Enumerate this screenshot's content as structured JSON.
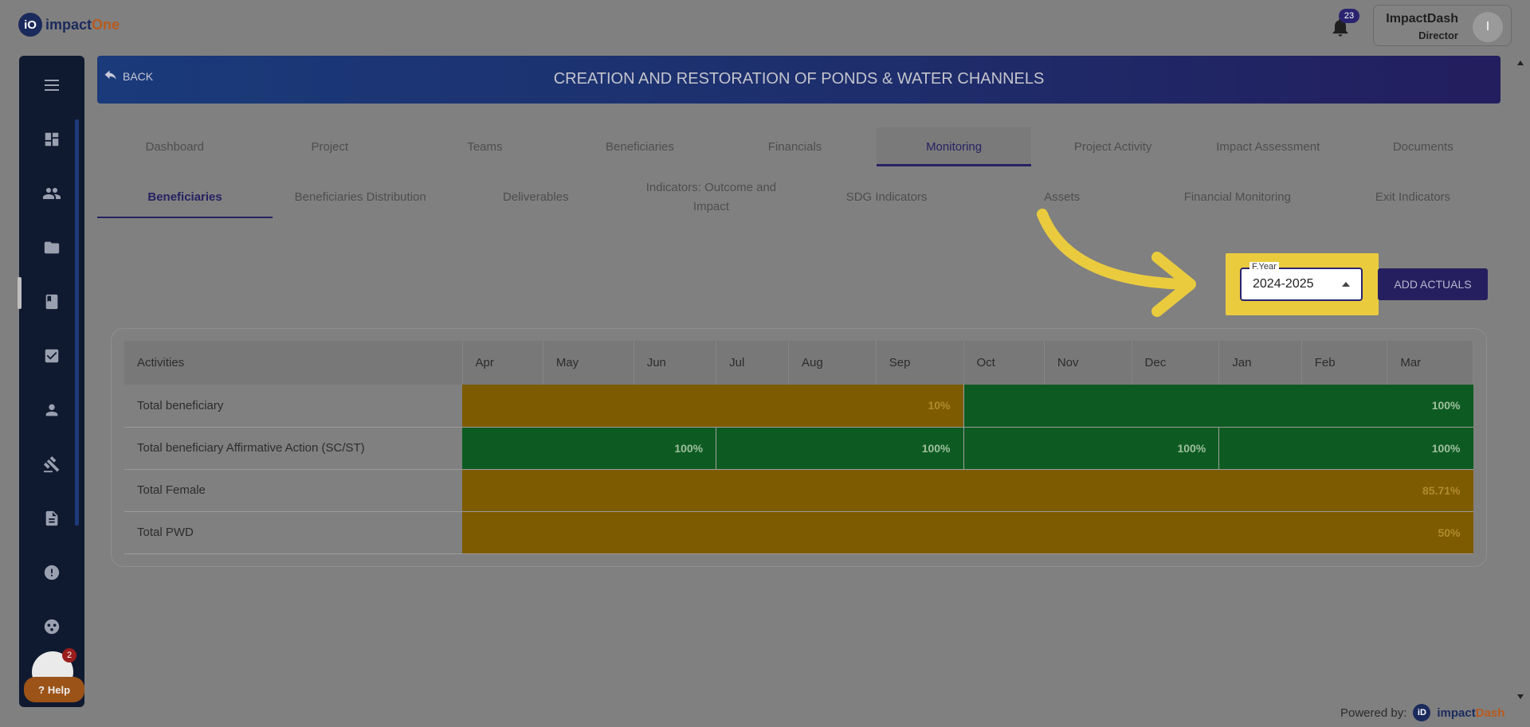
{
  "app": {
    "logo_mark": "iO",
    "logo_main": "impact",
    "logo_accent": "One"
  },
  "notifications": {
    "count": "23"
  },
  "user": {
    "name": "ImpactDash",
    "role": "Director",
    "initial": "I"
  },
  "header": {
    "back_label": "BACK",
    "title": "CREATION AND RESTORATION OF PONDS & WATER CHANNELS"
  },
  "tabs": [
    {
      "label": "Dashboard"
    },
    {
      "label": "Project"
    },
    {
      "label": "Teams"
    },
    {
      "label": "Beneficiaries"
    },
    {
      "label": "Financials"
    },
    {
      "label": "Monitoring"
    },
    {
      "label": "Project Activity"
    },
    {
      "label": "Impact Assessment"
    },
    {
      "label": "Documents"
    }
  ],
  "subtabs": [
    {
      "label": "Beneficiaries"
    },
    {
      "label": "Beneficiaries Distribution"
    },
    {
      "label": "Deliverables"
    },
    {
      "label": "Indicators: Outcome and Impact"
    },
    {
      "label": "SDG Indicators"
    },
    {
      "label": "Assets"
    },
    {
      "label": "Financial Monitoring"
    },
    {
      "label": "Exit Indicators"
    }
  ],
  "filter": {
    "label": "F.Year",
    "value": "2024-2025"
  },
  "actions": {
    "add_actuals": "ADD ACTUALS"
  },
  "table": {
    "activities_header": "Activities",
    "months": [
      "Apr",
      "May",
      "Jun",
      "Jul",
      "Aug",
      "Sep",
      "Oct",
      "Nov",
      "Dec",
      "Jan",
      "Feb",
      "Mar"
    ],
    "rows": [
      {
        "label": "Total beneficiary",
        "segments": [
          {
            "value": "10%",
            "status": "amber"
          },
          {
            "value": "100%",
            "status": "green"
          }
        ]
      },
      {
        "label": "Total beneficiary Affirmative Action (SC/ST)",
        "segments": [
          {
            "value": "100%",
            "status": "green"
          },
          {
            "value": "100%",
            "status": "green"
          },
          {
            "value": "100%",
            "status": "green"
          },
          {
            "value": "100%",
            "status": "green"
          }
        ]
      },
      {
        "label": "Total Female",
        "segments": [
          {
            "value": "85.71%",
            "status": "amber"
          }
        ]
      },
      {
        "label": "Total PWD",
        "segments": [
          {
            "value": "50%",
            "status": "amber"
          }
        ]
      }
    ]
  },
  "help": {
    "label": "Help"
  },
  "bot": {
    "badge": "2"
  },
  "footer": {
    "powered_label": "Powered by:",
    "brand_mark": "iD",
    "brand_main": "impact",
    "brand_accent": "Dash"
  },
  "colors": {
    "amber": "#7d5b00",
    "green": "#0d5b22",
    "primary": "#262262",
    "highlight": "#eacb3e"
  }
}
